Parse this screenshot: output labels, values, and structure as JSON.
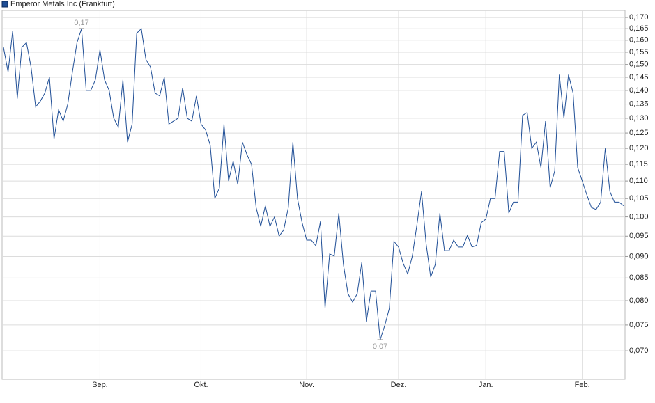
{
  "chart_data": {
    "type": "line",
    "log_scale": true,
    "grid": true,
    "legend": "top-left",
    "categories": [
      null,
      null,
      null,
      null,
      null,
      null,
      null,
      null,
      null,
      null,
      null,
      null,
      null,
      null,
      null,
      null,
      null,
      null,
      null,
      null,
      null,
      "Sep.",
      null,
      null,
      null,
      null,
      null,
      null,
      null,
      null,
      null,
      null,
      null,
      null,
      null,
      null,
      null,
      null,
      null,
      null,
      null,
      null,
      null,
      "Okt.",
      null,
      null,
      null,
      null,
      null,
      null,
      null,
      null,
      null,
      null,
      null,
      null,
      null,
      null,
      null,
      null,
      null,
      null,
      null,
      null,
      null,
      null,
      "Nov.",
      null,
      null,
      null,
      null,
      null,
      null,
      null,
      null,
      null,
      null,
      null,
      null,
      null,
      null,
      null,
      null,
      null,
      null,
      null,
      "Dez.",
      null,
      null,
      null,
      null,
      null,
      null,
      null,
      null,
      null,
      null,
      null,
      null,
      null,
      null,
      null,
      null,
      null,
      null,
      "Jan.",
      null,
      null,
      null,
      null,
      null,
      null,
      null,
      null,
      null,
      null,
      null,
      null,
      null,
      null,
      null,
      null,
      null,
      null,
      null,
      null,
      "Feb.",
      null,
      null,
      null,
      null,
      null,
      null,
      null,
      null,
      null
    ],
    "series": [
      {
        "name": "Emperor Metals Inc (Frankfurt)",
        "color": "#1f4e96",
        "values": [
          0.157,
          0.147,
          0.164,
          0.137,
          0.157,
          0.159,
          0.149,
          0.134,
          0.136,
          0.139,
          0.145,
          0.123,
          0.133,
          0.129,
          0.135,
          0.147,
          0.159,
          0.165,
          0.14,
          0.14,
          0.144,
          0.156,
          0.144,
          0.14,
          0.13,
          0.127,
          0.144,
          0.122,
          0.128,
          0.163,
          0.165,
          0.152,
          0.149,
          0.139,
          0.138,
          0.145,
          0.128,
          0.129,
          0.13,
          0.141,
          0.13,
          0.129,
          0.138,
          0.128,
          0.126,
          0.121,
          0.105,
          0.108,
          0.128,
          0.11,
          0.116,
          0.109,
          0.122,
          0.118,
          0.115,
          0.1025,
          0.0975,
          0.103,
          0.0975,
          0.1,
          0.095,
          0.0966,
          0.1025,
          0.122,
          0.105,
          0.0985,
          0.094,
          0.094,
          0.0926,
          0.0988,
          0.0784,
          0.0906,
          0.0901,
          0.101,
          0.0881,
          0.0815,
          0.0797,
          0.0815,
          0.0886,
          0.0757,
          0.0821,
          0.0821,
          0.0721,
          0.0749,
          0.0784,
          0.0937,
          0.0923,
          0.0884,
          0.0859,
          0.0901,
          0.0979,
          0.107,
          0.0931,
          0.0852,
          0.0881,
          0.101,
          0.0914,
          0.0914,
          0.094,
          0.0923,
          0.0923,
          0.0952,
          0.0923,
          0.0927,
          0.0985,
          0.0994,
          0.105,
          0.105,
          0.119,
          0.119,
          0.101,
          0.104,
          0.104,
          0.131,
          0.132,
          0.12,
          0.122,
          0.114,
          0.129,
          0.108,
          0.113,
          0.146,
          0.13,
          0.146,
          0.139,
          0.114,
          0.11,
          0.106,
          0.1025,
          0.102,
          0.104,
          0.12,
          0.107,
          0.104,
          0.104,
          0.103
        ]
      }
    ],
    "max_label": "0,17",
    "min_label": "0,07",
    "ylim": [
      0.0649,
      0.1732
    ],
    "yticks": [
      {
        "value": 0.07,
        "label": "0,070"
      },
      {
        "value": 0.075,
        "label": "0,075"
      },
      {
        "value": 0.08,
        "label": "0,080"
      },
      {
        "value": 0.085,
        "label": "0,085"
      },
      {
        "value": 0.09,
        "label": "0,090"
      },
      {
        "value": 0.095,
        "label": "0,095"
      },
      {
        "value": 0.1,
        "label": "0,100"
      },
      {
        "value": 0.105,
        "label": "0,105"
      },
      {
        "value": 0.11,
        "label": "0,110"
      },
      {
        "value": 0.115,
        "label": "0,115"
      },
      {
        "value": 0.12,
        "label": "0,120"
      },
      {
        "value": 0.125,
        "label": "0,125"
      },
      {
        "value": 0.13,
        "label": "0,130"
      },
      {
        "value": 0.135,
        "label": "0,135"
      },
      {
        "value": 0.14,
        "label": "0,140"
      },
      {
        "value": 0.145,
        "label": "0,145"
      },
      {
        "value": 0.15,
        "label": "0,150"
      },
      {
        "value": 0.155,
        "label": "0,155"
      },
      {
        "value": 0.16,
        "label": "0,160"
      },
      {
        "value": 0.165,
        "label": "0,165"
      },
      {
        "value": 0.17,
        "label": "0,170"
      }
    ]
  }
}
